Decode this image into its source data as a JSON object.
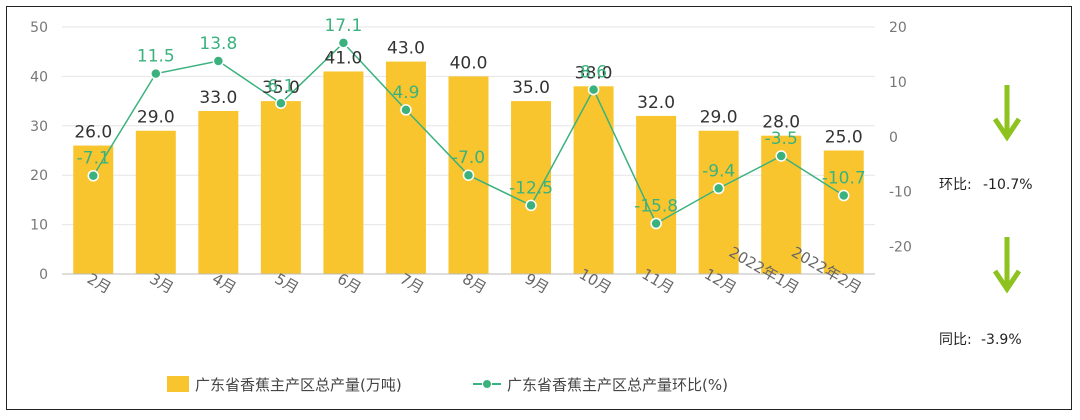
{
  "chart_data": {
    "type": "bar+line",
    "categories": [
      "2月",
      "3月",
      "4月",
      "5月",
      "6月",
      "7月",
      "8月",
      "9月",
      "10月",
      "11月",
      "12月",
      "2022年1月",
      "2022年2月"
    ],
    "series": [
      {
        "name": "广东省香蕉主产区总产量(万吨)",
        "type": "bar",
        "axis": "left",
        "values": [
          26.0,
          29.0,
          33.0,
          35.0,
          41.0,
          43.0,
          40.0,
          35.0,
          38.0,
          32.0,
          29.0,
          28.0,
          25.0
        ],
        "color": "#F9C52F"
      },
      {
        "name": "广东省香蕉主产区总产量环比(%)",
        "type": "line",
        "axis": "right",
        "values": [
          -7.1,
          11.5,
          13.8,
          6.1,
          17.1,
          4.9,
          -7.0,
          -12.5,
          8.6,
          -15.8,
          -9.4,
          -3.5,
          -10.7
        ],
        "color": "#3BB27E"
      }
    ],
    "y_left": {
      "min": 0,
      "max": 50,
      "ticks": [
        0,
        10,
        20,
        30,
        40,
        50
      ]
    },
    "y_right": {
      "min": -25,
      "max": 20,
      "ticks": [
        -20,
        -10,
        0,
        10,
        20
      ]
    },
    "legend_position": "bottom-center",
    "grid": true
  },
  "side_stats": {
    "mom_label": "环比:",
    "mom_value": "-10.7%",
    "yoy_label": "同比:",
    "yoy_value": "-3.9%",
    "arrow_color": "#8DC21F"
  }
}
